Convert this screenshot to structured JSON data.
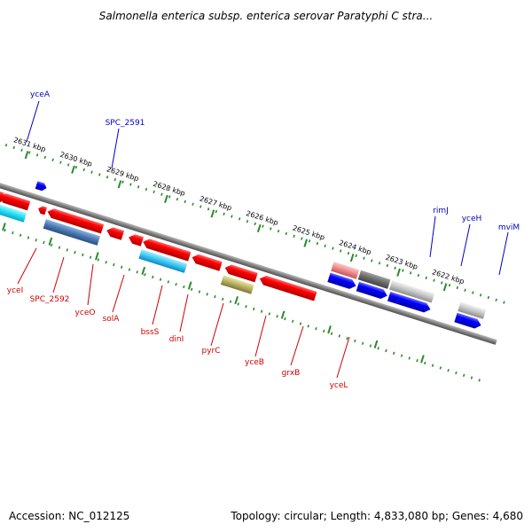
{
  "title": "Salmonella enterica subsp. enterica serovar Paratyphi C stra...",
  "footer": {
    "accession": "Accession: NC_012125",
    "summary": "Topology: circular; Length: 4,833,080 bp; Genes: 4,680"
  },
  "colors": {
    "forward_gene": "#0a0af0",
    "reverse_gene": "#ee0000",
    "forward_label": "#0000c8",
    "reverse_label": "#d00000",
    "backbone": "#808080",
    "ticks": "#2a8a2a",
    "pseudo_gray": "#c8c8c8",
    "dark_gray": "#707070",
    "cyan": "#22ddf0",
    "steel_blue": "#4a78b0",
    "light_blue": "#40c0f0",
    "olive": "#b8b060",
    "pink": "#f08a8a"
  },
  "scale": {
    "kbp_labels": [
      "2631 kbp",
      "2630 kbp",
      "2629 kbp",
      "2628 kbp",
      "2627 kbp",
      "2626 kbp",
      "2625 kbp",
      "2624 kbp",
      "2623 kbp",
      "2622 kbp"
    ]
  },
  "forward_genes": [
    "yceA",
    "SPC_2591",
    "rimJ",
    "yceH",
    "mviM"
  ],
  "reverse_genes": [
    "yceI",
    "SPC_2592",
    "yceO",
    "solA",
    "bssS",
    "dinI",
    "pyrC",
    "yceB",
    "grxB",
    "yceL"
  ],
  "icons": [
    "direction-arrow-icon"
  ]
}
